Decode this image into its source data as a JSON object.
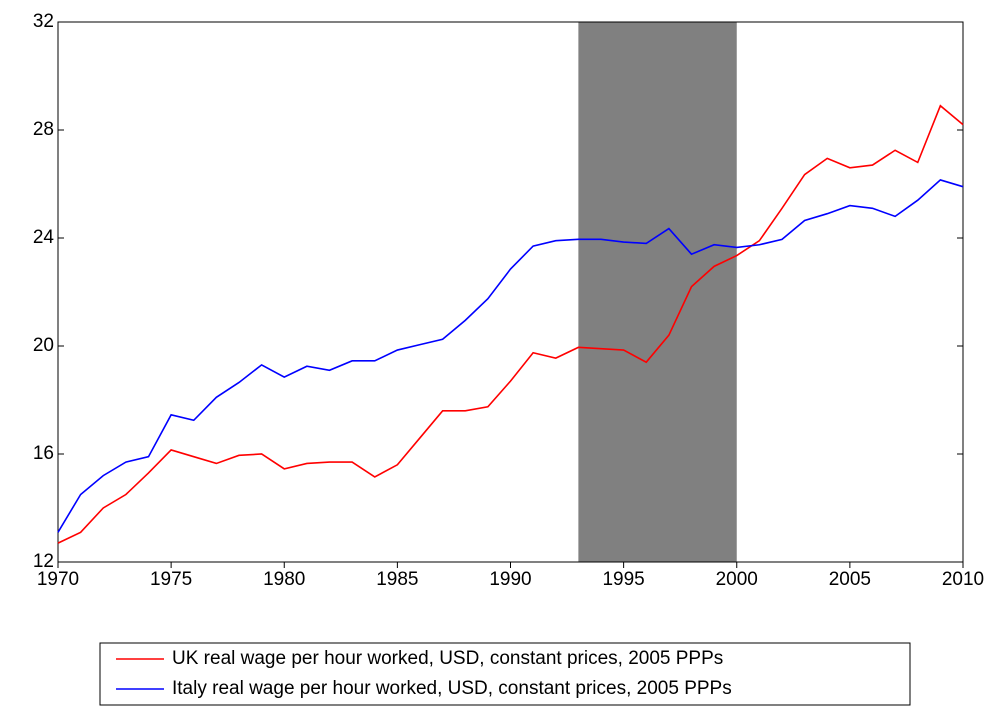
{
  "chart_data": {
    "type": "line",
    "x": [
      1970,
      1971,
      1972,
      1973,
      1974,
      1975,
      1976,
      1977,
      1978,
      1979,
      1980,
      1981,
      1982,
      1983,
      1984,
      1985,
      1986,
      1987,
      1988,
      1989,
      1990,
      1991,
      1992,
      1993,
      1994,
      1995,
      1996,
      1997,
      1998,
      1999,
      2000,
      2001,
      2002,
      2003,
      2004,
      2005,
      2006,
      2007,
      2008,
      2009,
      2010
    ],
    "series": [
      {
        "name": "UK real wage per hour worked, USD, constant prices, 2005 PPPs",
        "color": "#ff0000",
        "values": [
          12.7,
          13.1,
          14.0,
          14.5,
          15.3,
          16.15,
          15.9,
          15.65,
          15.95,
          16.0,
          15.45,
          15.65,
          15.7,
          15.7,
          15.15,
          15.6,
          16.6,
          17.6,
          17.6,
          17.75,
          18.7,
          19.75,
          19.55,
          19.95,
          19.9,
          19.85,
          19.4,
          20.4,
          22.2,
          22.95,
          23.35,
          23.9,
          25.1,
          26.35,
          26.95,
          26.6,
          26.7,
          27.25,
          26.8,
          28.9,
          28.2
        ]
      },
      {
        "name": "Italy real wage per hour worked, USD, constant prices, 2005 PPPs",
        "color": "#0000ff",
        "values": [
          13.1,
          14.5,
          15.2,
          15.7,
          15.9,
          17.45,
          17.25,
          18.1,
          18.65,
          19.3,
          18.85,
          19.25,
          19.1,
          19.45,
          19.45,
          19.85,
          20.05,
          20.25,
          20.95,
          21.75,
          22.85,
          23.7,
          23.9,
          23.95,
          23.95,
          23.85,
          23.8,
          24.35,
          23.4,
          23.75,
          23.65,
          23.75,
          23.95,
          24.65,
          24.9,
          25.2,
          25.1,
          24.8,
          25.4,
          26.15,
          25.9
        ]
      }
    ],
    "shaded": [
      1993,
      2000
    ],
    "shade_color": "#808080",
    "xlim": [
      1970,
      2010
    ],
    "xticks": [
      1970,
      1975,
      1980,
      1985,
      1990,
      1995,
      2000,
      2005,
      2010
    ],
    "ylim": [
      12,
      32
    ],
    "yticks": [
      12,
      16,
      20,
      24,
      28,
      32
    ],
    "legend": "bottom"
  }
}
